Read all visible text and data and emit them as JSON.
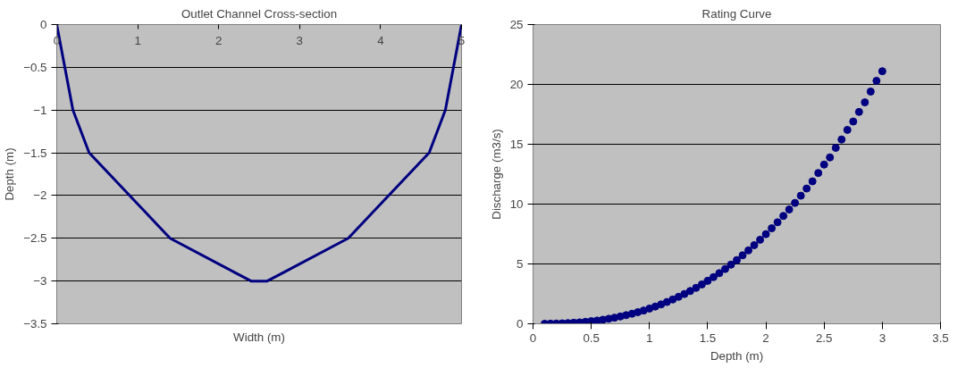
{
  "chart_data": [
    {
      "type": "line",
      "title": "Outlet Channel Cross-section",
      "xlabel": "Width (m)",
      "ylabel": "Depth (m)",
      "x": [
        0,
        0.1,
        0.2,
        0.4,
        1.1,
        1.4,
        2.2,
        2.4,
        2.6,
        2.8,
        3.6,
        3.9,
        4.6,
        4.8,
        4.9,
        5
      ],
      "series": [
        {
          "color": "#000080",
          "values": [
            0,
            -0.5,
            -1,
            -1.5,
            -2.2,
            -2.5,
            -2.9,
            -3,
            -3,
            -2.9,
            -2.5,
            -2.2,
            -1.5,
            -1,
            -0.5,
            0
          ]
        }
      ],
      "xlim": [
        0,
        5
      ],
      "xticks": [
        0,
        1,
        2,
        3,
        4,
        5
      ],
      "ylim": [
        -3.5,
        0
      ],
      "yticks": [
        -3.5,
        -3,
        -2.5,
        -2,
        -1.5,
        -1,
        -0.5,
        0
      ],
      "grid": "y"
    },
    {
      "type": "scatter",
      "title": "Rating Curve",
      "xlabel": "Depth (m)",
      "ylabel": "Discharge (m3/s)",
      "marker": "circle",
      "x": [
        0.1,
        0.15,
        0.2,
        0.25,
        0.3,
        0.35,
        0.4,
        0.45,
        0.5,
        0.55,
        0.6,
        0.65,
        0.7,
        0.75,
        0.8,
        0.85,
        0.9,
        0.95,
        1.0,
        1.05,
        1.1,
        1.15,
        1.2,
        1.25,
        1.3,
        1.35,
        1.4,
        1.45,
        1.5,
        1.55,
        1.6,
        1.65,
        1.7,
        1.75,
        1.8,
        1.85,
        1.9,
        1.95,
        2.0,
        2.05,
        2.1,
        2.15,
        2.2,
        2.25,
        2.3,
        2.35,
        2.4,
        2.45,
        2.5,
        2.55,
        2.6,
        2.65,
        2.7,
        2.75,
        2.8,
        2.85,
        2.9,
        2.95,
        3.0
      ],
      "series": [
        {
          "color": "#000080",
          "values": [
            0.0,
            0.01,
            0.02,
            0.04,
            0.06,
            0.09,
            0.12,
            0.16,
            0.22,
            0.27,
            0.34,
            0.42,
            0.51,
            0.61,
            0.72,
            0.84,
            0.97,
            1.11,
            1.27,
            1.44,
            1.62,
            1.82,
            2.03,
            2.25,
            2.49,
            2.74,
            3.0,
            3.29,
            3.59,
            3.9,
            4.23,
            4.58,
            4.94,
            5.32,
            5.72,
            6.13,
            6.57,
            7.02,
            7.49,
            7.98,
            8.48,
            9.01,
            9.55,
            10.1,
            10.7,
            11.3,
            11.9,
            12.6,
            13.3,
            13.9,
            14.7,
            15.4,
            16.2,
            16.9,
            17.7,
            18.5,
            19.4,
            20.3,
            21.1
          ]
        }
      ],
      "xlim": [
        0,
        3.5
      ],
      "xticks": [
        0,
        0.5,
        1,
        1.5,
        2,
        2.5,
        3,
        3.5
      ],
      "ylim": [
        0,
        25
      ],
      "yticks": [
        0,
        5,
        10,
        15,
        20,
        25
      ],
      "grid": "y"
    }
  ]
}
